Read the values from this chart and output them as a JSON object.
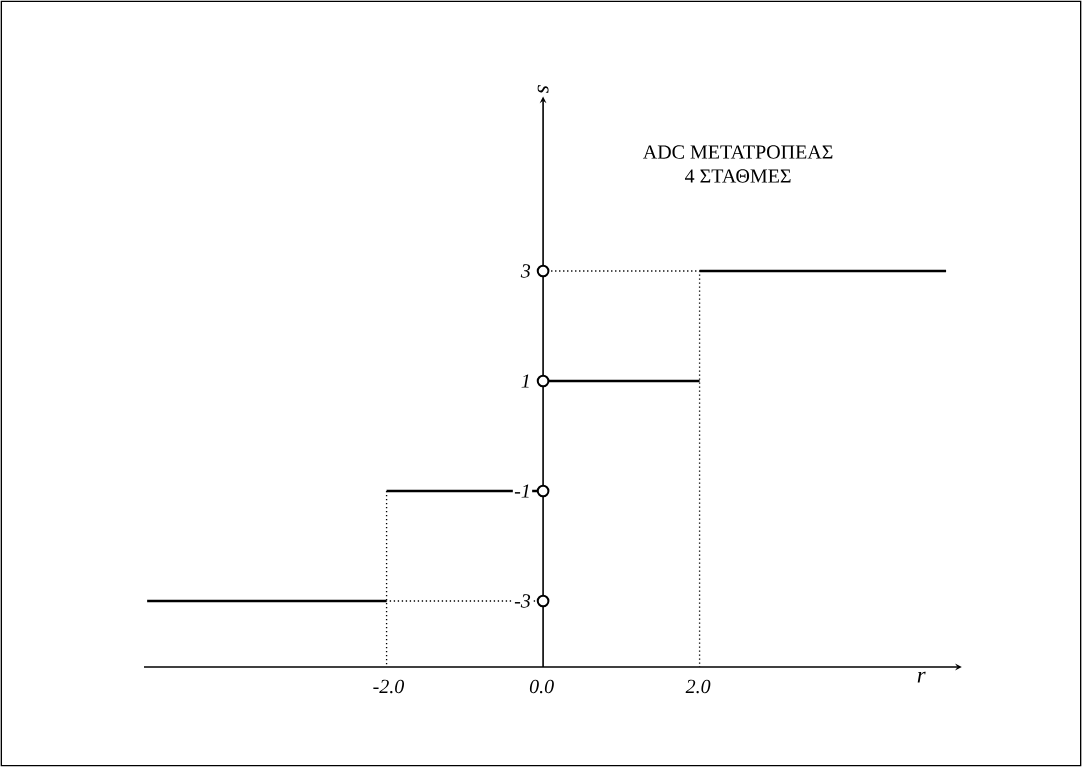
{
  "chart_data": {
    "type": "line",
    "title": "ADC ΜΕΤΑΤΡΟΠΕΑΣ",
    "subtitle": "4 ΣΤΑΘΜΕΣ",
    "xlabel": "r",
    "ylabel": "s",
    "xlim": [
      -5.1,
      5.3
    ],
    "ylim": [
      -4.2,
      6.1
    ],
    "xticks": [
      {
        "value": -2,
        "label": "-2.0"
      },
      {
        "value": 0,
        "label": "0.0"
      },
      {
        "value": 2,
        "label": "2.0"
      }
    ],
    "yticks": [
      -3,
      -1,
      1,
      3
    ],
    "grid": false,
    "series": [
      {
        "color": "#000000",
        "line_style": "solid",
        "x": [
          -5.06,
          -2
        ],
        "values": [
          -3,
          -3
        ]
      },
      {
        "color": "#000000",
        "line_style": "solid",
        "x": [
          -2,
          0
        ],
        "values": [
          -1,
          -1
        ]
      },
      {
        "color": "#000000",
        "line_style": "solid",
        "x": [
          0,
          2
        ],
        "values": [
          1,
          1
        ]
      },
      {
        "color": "#000000",
        "line_style": "solid",
        "x": [
          2,
          5.15
        ],
        "values": [
          3,
          3
        ]
      },
      {
        "color": "#000000",
        "line_style": "dotted",
        "x": [
          0,
          -2
        ],
        "values": [
          -3,
          -3
        ]
      },
      {
        "color": "#000000",
        "line_style": "dotted",
        "x": [
          -2,
          -2
        ],
        "values": [
          -1,
          -4.2
        ]
      },
      {
        "color": "#000000",
        "line_style": "dotted",
        "x": [
          0,
          2,
          2
        ],
        "values": [
          3,
          3,
          -4.2
        ]
      },
      {
        "type": "scatter",
        "marker": "circle",
        "color": "#000000",
        "x": [
          0,
          0,
          0,
          0
        ],
        "values": [
          -3,
          -1,
          1,
          3
        ]
      }
    ]
  }
}
